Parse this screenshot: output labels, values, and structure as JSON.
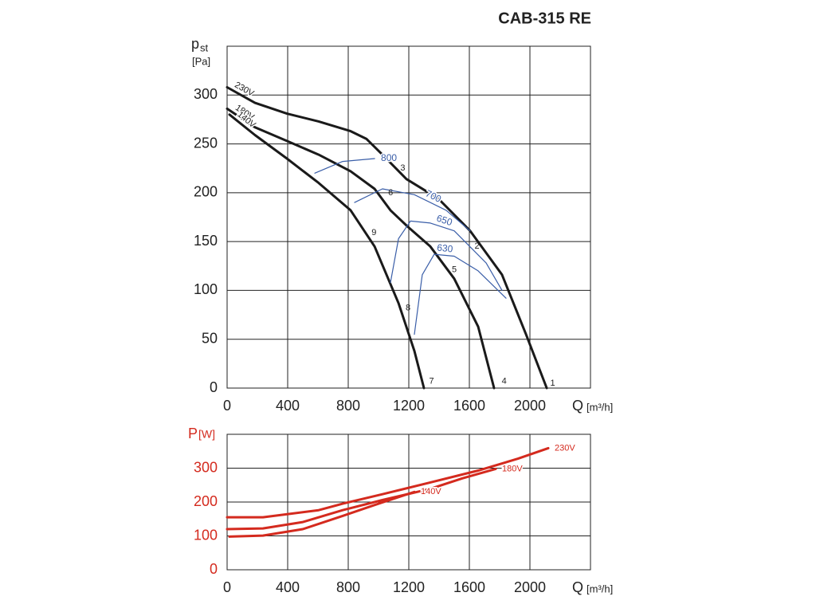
{
  "chart_data": [
    {
      "type": "line",
      "title": "CAB-315 RE",
      "y_label": "p",
      "y_label_sub": "st",
      "y_unit": "[Pa]",
      "x_label": "Q",
      "x_unit": "[m³/h]",
      "xlim": [
        0,
        2400
      ],
      "xticks": [
        0,
        400,
        800,
        1200,
        1600,
        2000
      ],
      "ylim": [
        0,
        350
      ],
      "yticks": [
        0,
        50,
        100,
        150,
        200,
        250,
        300
      ],
      "grid": true,
      "label_color": "#222222",
      "axis_color": "#222222",
      "series": [
        {
          "name": "230V",
          "color": "#1a1a1a",
          "width": 3,
          "label_position": "start",
          "x": [
            0,
            184,
            395,
            605,
            816,
            921,
            1026,
            1184,
            1395,
            1605,
            1816,
            1974,
            2111
          ],
          "values": [
            308,
            292,
            281,
            273,
            263,
            255,
            239,
            214,
            194,
            161,
            116,
            55,
            0
          ]
        },
        {
          "name": "180V",
          "color": "#1a1a1a",
          "width": 3,
          "label_position": "start",
          "x": [
            0,
            184,
            395,
            605,
            816,
            974,
            1079,
            1195,
            1342,
            1500,
            1658,
            1763
          ],
          "values": [
            286,
            267,
            253,
            239,
            222,
            204,
            182,
            165,
            145,
            112,
            63,
            0
          ]
        },
        {
          "name": "140V",
          "color": "#1a1a1a",
          "width": 3,
          "label_position": "start",
          "x": [
            16,
            184,
            395,
            605,
            816,
            974,
            1132,
            1237,
            1300
          ],
          "values": [
            280,
            259,
            235,
            210,
            182,
            145,
            87,
            38,
            0
          ]
        },
        {
          "name": "800",
          "color": "#3a5ea8",
          "width": 1.2,
          "label_position": "end",
          "x": [
            579,
            763,
            974
          ],
          "values": [
            220,
            232,
            235
          ]
        },
        {
          "name": "700",
          "color": "#3a5ea8",
          "width": 1.2,
          "label_position": "middle",
          "x": [
            842,
            1026,
            1237,
            1447,
            1605
          ],
          "values": [
            190,
            204,
            198,
            182,
            161
          ]
        },
        {
          "name": "650",
          "color": "#3a5ea8",
          "width": 1.2,
          "label_position": "middle",
          "x": [
            1079,
            1132,
            1211,
            1342,
            1500,
            1711,
            1816
          ],
          "values": [
            108,
            153,
            171,
            169,
            161,
            128,
            100
          ]
        },
        {
          "name": "630",
          "color": "#3a5ea8",
          "width": 1.2,
          "label_position": "middle",
          "x": [
            1237,
            1289,
            1368,
            1500,
            1658,
            1842
          ],
          "values": [
            55,
            116,
            137,
            135,
            120,
            92
          ]
        }
      ],
      "annotations": [
        {
          "text": "1",
          "x": 2150,
          "y": 5
        },
        {
          "text": "2",
          "x": 1650,
          "y": 145
        },
        {
          "text": "3",
          "x": 1160,
          "y": 225
        },
        {
          "text": "4",
          "x": 1830,
          "y": 7
        },
        {
          "text": "5",
          "x": 1500,
          "y": 121
        },
        {
          "text": "6",
          "x": 1080,
          "y": 200
        },
        {
          "text": "7",
          "x": 1350,
          "y": 7
        },
        {
          "text": "8",
          "x": 1195,
          "y": 82
        },
        {
          "text": "9",
          "x": 970,
          "y": 159
        }
      ]
    },
    {
      "type": "line",
      "y_label": "P",
      "y_unit": "[W]",
      "x_label": "Q",
      "x_unit": "[m³/h]",
      "xlim": [
        0,
        2400
      ],
      "xticks": [
        0,
        400,
        800,
        1200,
        1600,
        2000
      ],
      "ylim": [
        0,
        400
      ],
      "yticks": [
        0,
        100,
        200,
        300
      ],
      "grid": true,
      "label_color": "#d42a1e",
      "axis_color": "#222222",
      "series": [
        {
          "name": "230V",
          "color": "#d42a1e",
          "width": 3,
          "label_position": "end",
          "x": [
            0,
            237,
            605,
            763,
            1026,
            1342,
            1658,
            1921,
            2121
          ],
          "values": [
            155,
            155,
            176,
            195,
            223,
            258,
            293,
            328,
            359
          ]
        },
        {
          "name": "180V",
          "color": "#d42a1e",
          "width": 3,
          "label_position": "end",
          "x": [
            0,
            237,
            500,
            763,
            1026,
            1342,
            1553,
            1774
          ],
          "values": [
            120,
            122,
            141,
            176,
            206,
            239,
            270,
            298
          ]
        },
        {
          "name": "140V",
          "color": "#d42a1e",
          "width": 3,
          "label_position": "end",
          "x": [
            16,
            237,
            500,
            763,
            1026,
            1237
          ],
          "values": [
            98,
            101,
            120,
            159,
            199,
            230
          ]
        }
      ]
    }
  ]
}
